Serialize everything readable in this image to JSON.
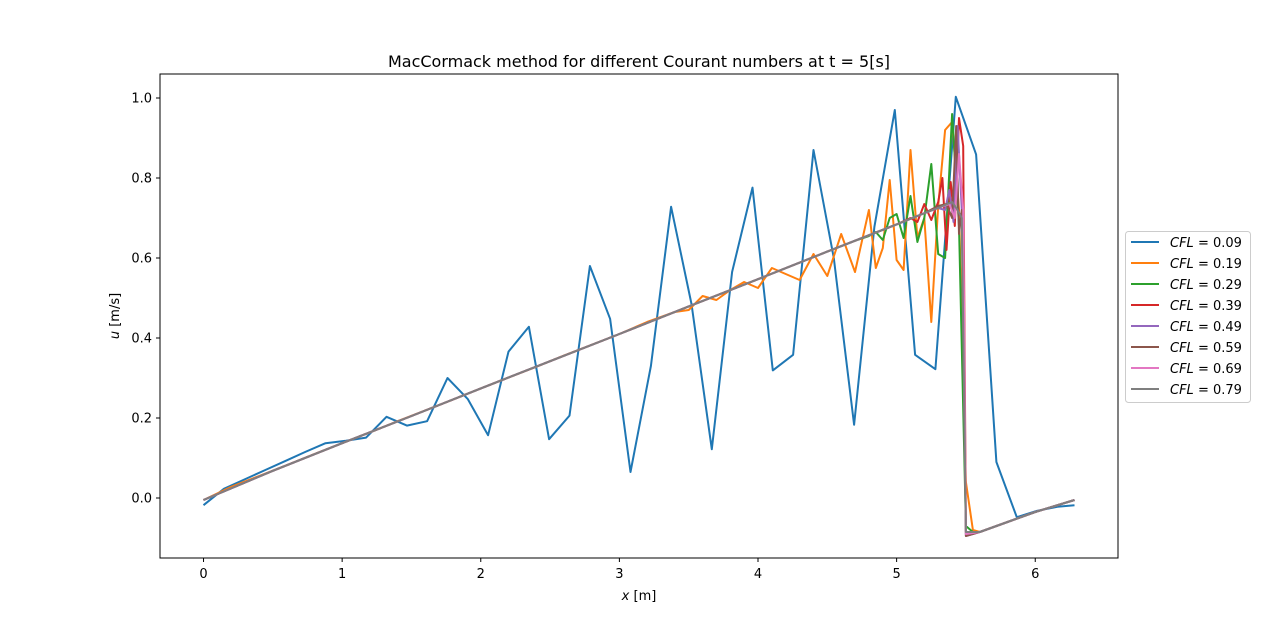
{
  "chart_data": {
    "type": "line",
    "title": "MacCormack method for different Courant numbers at t = 5[s]",
    "xlabel_var": "x",
    "xlabel_unit": " [m]",
    "ylabel_var": "u",
    "ylabel_unit": " [m/s]",
    "xlim": [
      -0.314,
      6.597
    ],
    "ylim": [
      -0.15,
      1.06
    ],
    "xticks": [
      0,
      1,
      2,
      3,
      4,
      5,
      6
    ],
    "xtick_labels": [
      "0",
      "1",
      "2",
      "3",
      "4",
      "5",
      "6"
    ],
    "yticks": [
      0.0,
      0.2,
      0.4,
      0.6,
      0.8,
      1.0
    ],
    "ytick_labels": [
      "0.0",
      "0.2",
      "0.4",
      "0.6",
      "0.8",
      "1.0"
    ],
    "grid": false,
    "legend_position": "right-outside",
    "legend_var": "CFL",
    "series": [
      {
        "name": "0.09",
        "label": "= 0.09",
        "color": "#1f77b4",
        "x": [
          0,
          0.147,
          0.293,
          0.44,
          0.587,
          0.733,
          0.88,
          1.027,
          1.173,
          1.32,
          1.467,
          1.613,
          1.76,
          1.907,
          2.053,
          2.2,
          2.347,
          2.493,
          2.64,
          2.787,
          2.933,
          3.08,
          3.227,
          3.373,
          3.52,
          3.667,
          3.813,
          3.96,
          4.107,
          4.253,
          4.4,
          4.547,
          4.693,
          4.84,
          4.987,
          5.133,
          5.28,
          5.427,
          5.573,
          5.72,
          5.867,
          6.013,
          6.16,
          6.283
        ],
        "y": [
          -0.018,
          0.023,
          0.046,
          0.069,
          0.092,
          0.115,
          0.137,
          0.143,
          0.151,
          0.203,
          0.181,
          0.192,
          0.3,
          0.247,
          0.157,
          0.366,
          0.428,
          0.147,
          0.206,
          0.58,
          0.448,
          0.065,
          0.33,
          0.728,
          0.485,
          0.122,
          0.565,
          0.776,
          0.319,
          0.358,
          0.87,
          0.6,
          0.183,
          0.678,
          0.97,
          0.358,
          0.322,
          1.003,
          0.859,
          0.09,
          -0.048,
          -0.032,
          -0.022,
          -0.018
        ]
      },
      {
        "name": "0.19",
        "label": "= 0.19",
        "color": "#ff7f0e",
        "x": [
          0,
          0.2,
          0.4,
          0.6,
          0.8,
          1.0,
          1.2,
          1.4,
          1.6,
          1.8,
          2.0,
          2.2,
          2.4,
          2.6,
          2.8,
          3.0,
          3.2,
          3.4,
          3.5,
          3.6,
          3.7,
          3.8,
          3.9,
          4.0,
          4.1,
          4.2,
          4.3,
          4.4,
          4.5,
          4.6,
          4.7,
          4.8,
          4.85,
          4.9,
          4.95,
          5.0,
          5.05,
          5.1,
          5.15,
          5.2,
          5.25,
          5.3,
          5.35,
          5.4,
          5.45,
          5.5,
          5.55,
          5.6,
          5.8,
          6.0,
          6.283
        ],
        "y": [
          -0.005,
          0.028,
          0.055,
          0.082,
          0.11,
          0.137,
          0.164,
          0.192,
          0.219,
          0.246,
          0.274,
          0.301,
          0.328,
          0.356,
          0.383,
          0.41,
          0.44,
          0.465,
          0.47,
          0.505,
          0.495,
          0.52,
          0.54,
          0.525,
          0.575,
          0.56,
          0.545,
          0.61,
          0.555,
          0.66,
          0.565,
          0.72,
          0.575,
          0.625,
          0.795,
          0.595,
          0.57,
          0.87,
          0.65,
          0.7,
          0.44,
          0.73,
          0.92,
          0.94,
          0.72,
          0.04,
          -0.08,
          -0.085,
          -0.06,
          -0.035,
          -0.005
        ]
      },
      {
        "name": "0.29",
        "label": "= 0.29",
        "color": "#2ca02c",
        "x": [
          0,
          0.5,
          1.0,
          1.5,
          2.0,
          2.5,
          3.0,
          3.5,
          4.0,
          4.5,
          4.7,
          4.8,
          4.85,
          4.9,
          4.95,
          5.0,
          5.05,
          5.1,
          5.15,
          5.2,
          5.25,
          5.3,
          5.35,
          5.4,
          5.45,
          5.5,
          5.55,
          5.6,
          5.8,
          6.0,
          6.283
        ],
        "y": [
          -0.005,
          0.068,
          0.137,
          0.205,
          0.274,
          0.342,
          0.41,
          0.479,
          0.547,
          0.616,
          0.643,
          0.655,
          0.665,
          0.645,
          0.7,
          0.71,
          0.65,
          0.755,
          0.64,
          0.7,
          0.835,
          0.61,
          0.6,
          0.96,
          0.68,
          -0.07,
          -0.085,
          -0.085,
          -0.06,
          -0.035,
          -0.005
        ]
      },
      {
        "name": "0.39",
        "label": "= 0.39",
        "color": "#d62728",
        "x": [
          0,
          0.5,
          1.0,
          1.5,
          2.0,
          2.5,
          3.0,
          3.5,
          4.0,
          4.5,
          5.0,
          5.1,
          5.15,
          5.2,
          5.25,
          5.3,
          5.33,
          5.36,
          5.39,
          5.42,
          5.45,
          5.48,
          5.5,
          5.6,
          5.8,
          6.0,
          6.283
        ],
        "y": [
          -0.005,
          0.068,
          0.137,
          0.205,
          0.274,
          0.342,
          0.41,
          0.479,
          0.547,
          0.616,
          0.684,
          0.7,
          0.69,
          0.735,
          0.695,
          0.74,
          0.8,
          0.62,
          0.79,
          0.68,
          0.95,
          0.88,
          -0.085,
          -0.085,
          -0.06,
          -0.035,
          -0.005
        ]
      },
      {
        "name": "0.49",
        "label": "= 0.49",
        "color": "#9467bd",
        "x": [
          0,
          0.5,
          1.0,
          1.5,
          2.0,
          2.5,
          3.0,
          3.5,
          4.0,
          4.5,
          5.0,
          5.2,
          5.3,
          5.35,
          5.38,
          5.41,
          5.44,
          5.47,
          5.5,
          5.6,
          5.8,
          6.0,
          6.283
        ],
        "y": [
          -0.005,
          0.068,
          0.137,
          0.205,
          0.274,
          0.342,
          0.41,
          0.479,
          0.547,
          0.616,
          0.684,
          0.712,
          0.725,
          0.72,
          0.77,
          0.69,
          0.93,
          0.72,
          -0.095,
          -0.085,
          -0.06,
          -0.035,
          -0.005
        ]
      },
      {
        "name": "0.59",
        "label": "= 0.59",
        "color": "#8c564b",
        "x": [
          0,
          0.5,
          1.0,
          1.5,
          2.0,
          2.5,
          3.0,
          3.5,
          4.0,
          4.5,
          5.0,
          5.2,
          5.3,
          5.36,
          5.4,
          5.43,
          5.45,
          5.47,
          5.5,
          5.6,
          5.8,
          6.0,
          6.283
        ],
        "y": [
          -0.005,
          0.068,
          0.137,
          0.205,
          0.274,
          0.342,
          0.41,
          0.479,
          0.547,
          0.616,
          0.684,
          0.712,
          0.73,
          0.735,
          0.7,
          0.93,
          0.66,
          0.72,
          -0.095,
          -0.085,
          -0.06,
          -0.035,
          -0.005
        ]
      },
      {
        "name": "0.69",
        "label": "= 0.69",
        "color": "#e377c2",
        "x": [
          0,
          0.5,
          1.0,
          1.5,
          2.0,
          2.5,
          3.0,
          3.5,
          4.0,
          4.5,
          5.0,
          5.2,
          5.3,
          5.38,
          5.42,
          5.45,
          5.48,
          5.5,
          5.6,
          5.8,
          6.0,
          6.283
        ],
        "y": [
          -0.005,
          0.068,
          0.137,
          0.205,
          0.274,
          0.342,
          0.41,
          0.479,
          0.547,
          0.616,
          0.684,
          0.712,
          0.725,
          0.735,
          0.7,
          0.86,
          0.72,
          -0.09,
          -0.085,
          -0.06,
          -0.035,
          -0.005
        ]
      },
      {
        "name": "0.79",
        "label": "= 0.79",
        "color": "#7f7f7f",
        "x": [
          0,
          0.5,
          1.0,
          1.5,
          2.0,
          2.5,
          3.0,
          3.5,
          4.0,
          4.5,
          5.0,
          5.2,
          5.3,
          5.4,
          5.44,
          5.47,
          5.5,
          5.6,
          5.8,
          6.0,
          6.283
        ],
        "y": [
          -0.005,
          0.068,
          0.137,
          0.205,
          0.274,
          0.342,
          0.41,
          0.479,
          0.547,
          0.616,
          0.684,
          0.712,
          0.725,
          0.74,
          0.72,
          0.7,
          -0.085,
          -0.085,
          -0.06,
          -0.035,
          -0.005
        ]
      }
    ]
  }
}
